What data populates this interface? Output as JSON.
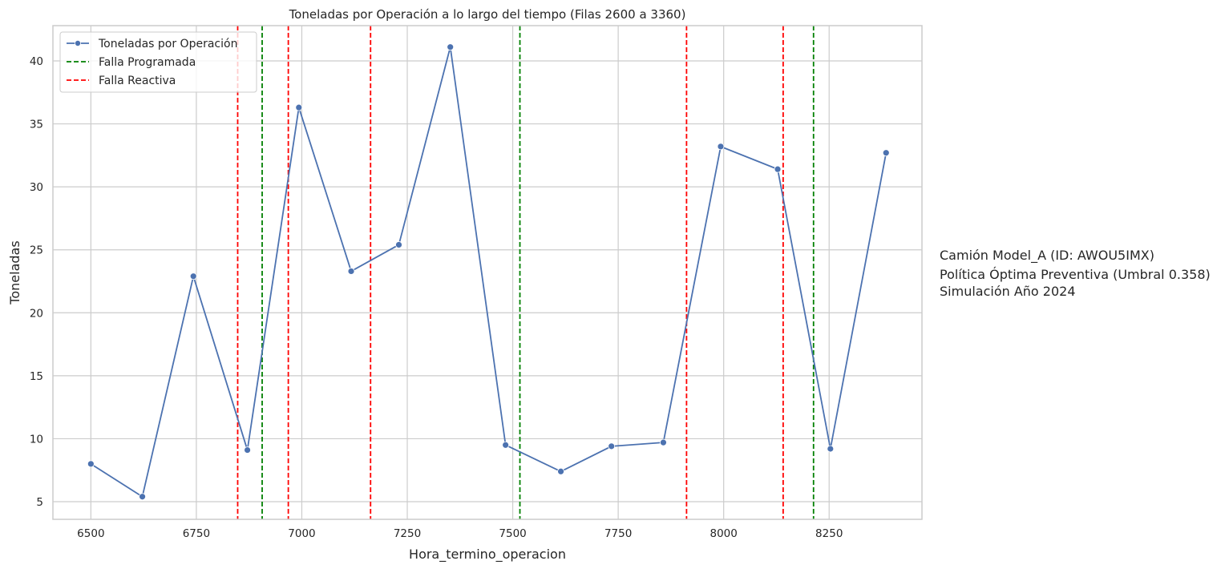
{
  "chart_data": {
    "type": "line",
    "title": "Toneladas por Operación a lo largo del tiempo (Filas 2600 a 3360)",
    "xlabel": "Hora_termino_operacion",
    "ylabel": "Toneladas",
    "xlim": [
      6410,
      8470
    ],
    "ylim": [
      3.6,
      42.8
    ],
    "xticks": [
      6500,
      6750,
      7000,
      7250,
      7500,
      7750,
      8000,
      8250
    ],
    "yticks": [
      5,
      10,
      15,
      20,
      25,
      30,
      35,
      40
    ],
    "grid": true,
    "legend_position": "top-left",
    "series": [
      {
        "name": "Toneladas por Operación",
        "color": "#4c72b0",
        "x": [
          6500,
          6622,
          6743,
          6871,
          6993,
          7117,
          7230,
          7352,
          7483,
          7614,
          7734,
          7857,
          7993,
          8128,
          8253,
          8385
        ],
        "y": [
          8.0,
          5.4,
          22.9,
          9.1,
          36.3,
          23.3,
          25.4,
          41.1,
          9.5,
          7.4,
          9.4,
          9.7,
          33.2,
          31.4,
          9.2,
          32.7
        ]
      }
    ],
    "reference_lines": [
      {
        "name": "Falla Programada",
        "color": "#008000",
        "x": [
          6906,
          7517,
          8213
        ]
      },
      {
        "name": "Falla Reactiva",
        "color": "#ff0000",
        "x": [
          6848,
          6968,
          7163,
          7912,
          8141
        ]
      }
    ],
    "annotation": [
      "Camión Model_A (ID: AWOU5IMX)",
      "Política Óptima Preventiva (Umbral 0.358)",
      "Simulación Año 2024"
    ]
  }
}
